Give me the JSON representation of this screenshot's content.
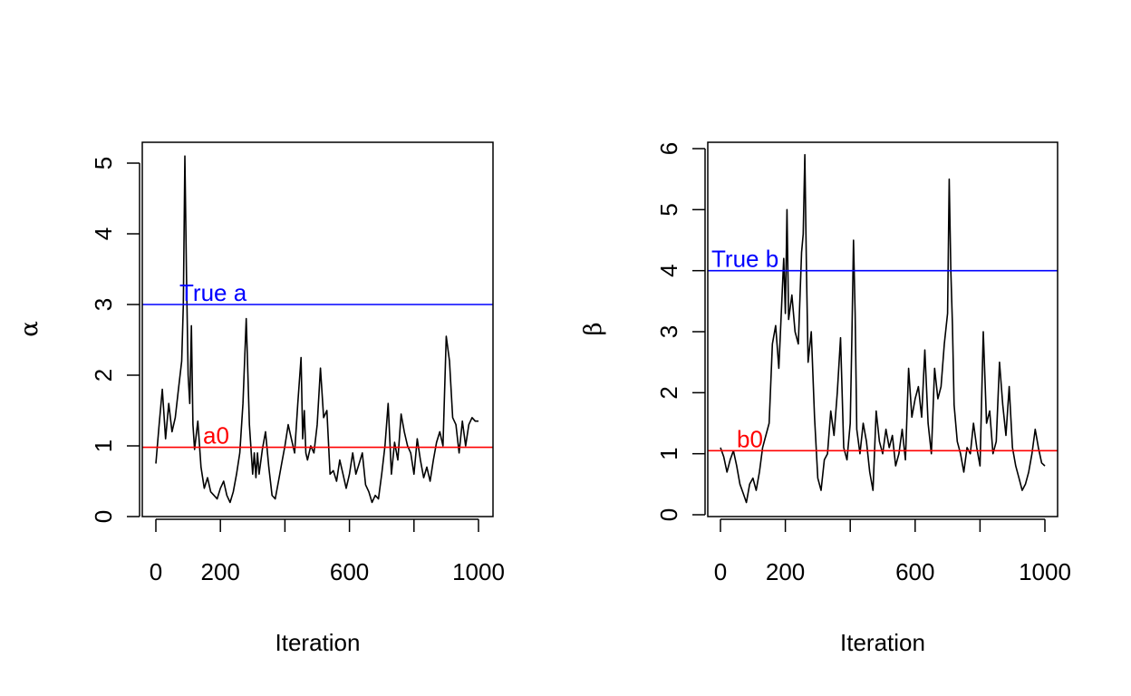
{
  "chart_data": [
    {
      "type": "line",
      "title": "",
      "xlabel": "Iteration",
      "ylabel": "α",
      "xlim": [
        0,
        1000
      ],
      "ylim": [
        0,
        5
      ],
      "xticks": [
        0,
        200,
        400,
        600,
        800,
        1000
      ],
      "xtick_labels": [
        "0",
        "200",
        "",
        "600",
        "",
        "1000"
      ],
      "yticks": [
        0,
        1,
        2,
        3,
        4,
        5
      ],
      "ytick_labels": [
        "0",
        "1",
        "2",
        "3",
        "4",
        "5"
      ],
      "grid": false,
      "legend": "none",
      "colors": {
        "trace": "#000000",
        "true_line": "#0000ff",
        "init_line": "#ff0000"
      },
      "hlines": [
        {
          "y": 3.0,
          "label": "True a",
          "color": "#0000ff",
          "label_x": 200
        },
        {
          "y": 0.98,
          "label": "a0",
          "color": "#ff0000",
          "label_x": 200
        }
      ],
      "series": [
        {
          "x": [
            0,
            10,
            20,
            30,
            40,
            50,
            60,
            70,
            80,
            85,
            90,
            95,
            100,
            105,
            110,
            115,
            120,
            130,
            140,
            150,
            160,
            170,
            180,
            190,
            200,
            210,
            220,
            230,
            240,
            250,
            260,
            270,
            280,
            290,
            300,
            305,
            310,
            315,
            320,
            330,
            340,
            350,
            360,
            370,
            380,
            390,
            400,
            410,
            420,
            430,
            440,
            450,
            455,
            460,
            465,
            470,
            480,
            490,
            500,
            510,
            520,
            530,
            540,
            550,
            560,
            570,
            580,
            590,
            600,
            610,
            620,
            630,
            640,
            650,
            660,
            670,
            680,
            690,
            700,
            710,
            720,
            730,
            740,
            750,
            760,
            770,
            780,
            790,
            800,
            810,
            820,
            830,
            840,
            850,
            860,
            870,
            880,
            890,
            900,
            910,
            920,
            930,
            940,
            950,
            960,
            970,
            980,
            990,
            1000
          ],
          "y": [
            0.75,
            1.3,
            1.8,
            1.1,
            1.6,
            1.2,
            1.4,
            1.8,
            2.2,
            3.0,
            5.1,
            3.4,
            2.0,
            1.6,
            2.7,
            1.3,
            0.95,
            1.35,
            0.7,
            0.4,
            0.55,
            0.35,
            0.3,
            0.25,
            0.4,
            0.5,
            0.3,
            0.2,
            0.35,
            0.6,
            0.9,
            1.6,
            2.8,
            1.3,
            0.6,
            0.9,
            0.55,
            0.9,
            0.6,
            0.95,
            1.2,
            0.7,
            0.3,
            0.25,
            0.5,
            0.75,
            1.0,
            1.3,
            1.1,
            0.9,
            1.6,
            2.25,
            1.1,
            1.5,
            0.9,
            0.8,
            1.0,
            0.9,
            1.3,
            2.1,
            1.4,
            1.5,
            0.6,
            0.65,
            0.5,
            0.8,
            0.6,
            0.4,
            0.6,
            0.9,
            0.6,
            0.75,
            0.9,
            0.45,
            0.35,
            0.2,
            0.3,
            0.25,
            0.6,
            1.0,
            1.6,
            0.6,
            1.05,
            0.8,
            1.45,
            1.2,
            1.0,
            0.9,
            0.6,
            1.1,
            0.8,
            0.55,
            0.7,
            0.5,
            0.8,
            1.05,
            1.2,
            1.0,
            2.55,
            2.2,
            1.4,
            1.3,
            0.9,
            1.35,
            1.0,
            1.3,
            1.4,
            1.35,
            1.35
          ]
        }
      ]
    },
    {
      "type": "line",
      "title": "",
      "xlabel": "Iteration",
      "ylabel": "β",
      "xlim": [
        0,
        1000
      ],
      "ylim": [
        0,
        6
      ],
      "xticks": [
        0,
        200,
        400,
        600,
        800,
        1000
      ],
      "xtick_labels": [
        "0",
        "200",
        "",
        "600",
        "",
        "1000"
      ],
      "yticks": [
        0,
        1,
        2,
        3,
        4,
        5,
        6
      ],
      "ytick_labels": [
        "0",
        "1",
        "2",
        "3",
        "4",
        "5",
        "6"
      ],
      "grid": false,
      "legend": "none",
      "colors": {
        "trace": "#000000",
        "true_line": "#0000ff",
        "init_line": "#ff0000"
      },
      "hlines": [
        {
          "y": 4.0,
          "label": "True b",
          "color": "#0000ff",
          "label_x": 100
        },
        {
          "y": 1.05,
          "label": "b0",
          "color": "#ff0000",
          "label_x": 100
        }
      ],
      "series": [
        {
          "x": [
            0,
            10,
            20,
            30,
            40,
            50,
            60,
            70,
            80,
            90,
            100,
            110,
            120,
            130,
            140,
            150,
            160,
            170,
            180,
            190,
            195,
            200,
            205,
            210,
            220,
            230,
            240,
            250,
            255,
            260,
            265,
            270,
            280,
            290,
            300,
            310,
            320,
            330,
            340,
            350,
            360,
            370,
            380,
            390,
            400,
            405,
            410,
            415,
            420,
            430,
            440,
            450,
            460,
            470,
            480,
            490,
            500,
            510,
            520,
            530,
            540,
            550,
            560,
            570,
            580,
            590,
            600,
            610,
            620,
            630,
            640,
            650,
            660,
            670,
            680,
            690,
            700,
            705,
            710,
            715,
            720,
            730,
            740,
            750,
            760,
            770,
            780,
            790,
            800,
            810,
            820,
            830,
            840,
            850,
            860,
            870,
            880,
            890,
            900,
            910,
            920,
            930,
            940,
            950,
            960,
            970,
            980,
            990,
            1000
          ],
          "y": [
            1.1,
            0.95,
            0.7,
            0.9,
            1.05,
            0.8,
            0.5,
            0.35,
            0.2,
            0.5,
            0.6,
            0.4,
            0.7,
            1.1,
            1.3,
            1.5,
            2.8,
            3.1,
            2.4,
            3.6,
            4.2,
            3.3,
            5.0,
            3.2,
            3.6,
            3.0,
            2.8,
            4.3,
            4.6,
            5.9,
            4.0,
            2.5,
            3.0,
            1.6,
            0.6,
            0.4,
            0.9,
            1.0,
            1.7,
            1.3,
            2.0,
            2.9,
            1.1,
            0.9,
            1.5,
            2.9,
            4.5,
            3.3,
            1.4,
            1.0,
            1.5,
            1.2,
            0.7,
            0.4,
            1.7,
            1.2,
            1.0,
            1.4,
            1.1,
            1.3,
            0.8,
            1.0,
            1.4,
            0.9,
            2.4,
            1.6,
            1.9,
            2.1,
            1.6,
            2.7,
            1.5,
            1.0,
            2.4,
            1.9,
            2.1,
            2.8,
            3.3,
            5.5,
            4.0,
            3.1,
            1.8,
            1.2,
            1.0,
            0.7,
            1.1,
            1.0,
            1.5,
            1.1,
            0.8,
            3.0,
            1.5,
            1.7,
            1.0,
            1.2,
            2.5,
            1.8,
            1.3,
            2.1,
            1.1,
            0.8,
            0.6,
            0.4,
            0.5,
            0.7,
            1.0,
            1.4,
            1.1,
            0.85,
            0.8
          ]
        }
      ]
    }
  ]
}
